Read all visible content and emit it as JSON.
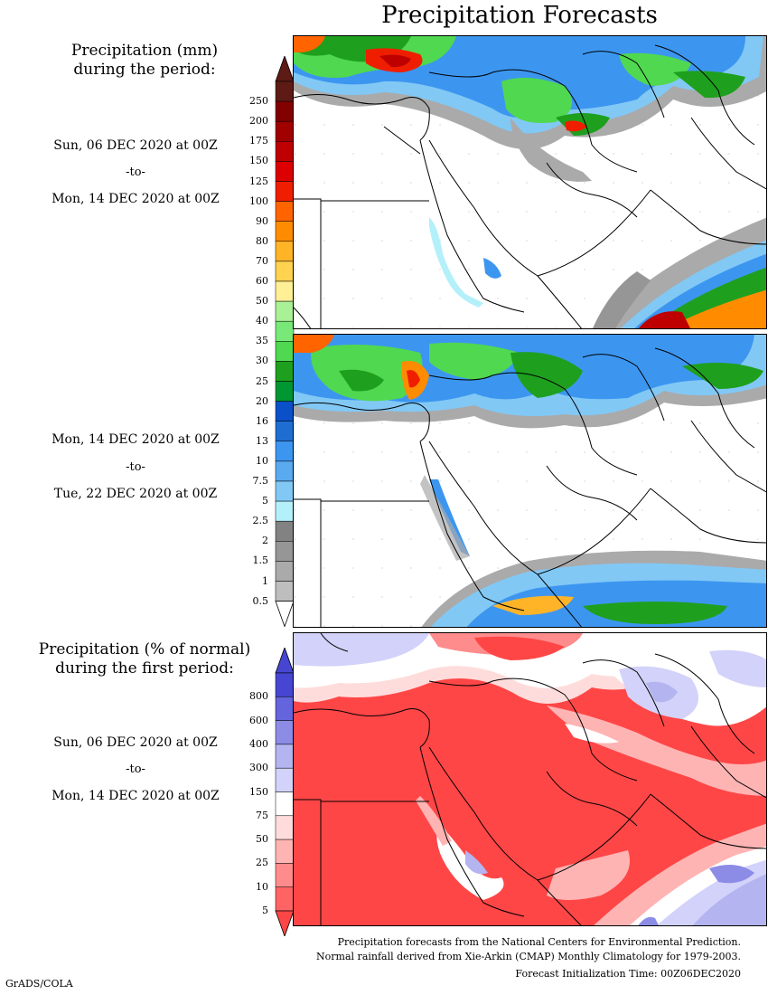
{
  "title": "Precipitation Forecasts",
  "panels": [
    {
      "header": [
        "Precipitation (mm)",
        "during the period:"
      ],
      "start": "Sun, 06 DEC 2020 at 00Z",
      "sep": "-to-",
      "end": "Mon, 14 DEC 2020 at 00Z"
    },
    {
      "start": "Mon, 14 DEC 2020 at 00Z",
      "sep": "-to-",
      "end": "Tue, 22 DEC 2020 at 00Z"
    },
    {
      "header": [
        "Precipitation (% of normal)",
        "during the first period:"
      ],
      "start": "Sun, 06 DEC 2020 at 00Z",
      "sep": "-to-",
      "end": "Mon, 14 DEC 2020 at 00Z"
    }
  ],
  "precip_scale": {
    "labels": [
      "250",
      "200",
      "175",
      "150",
      "125",
      "100",
      "90",
      "80",
      "70",
      "60",
      "50",
      "40",
      "35",
      "30",
      "25",
      "20",
      "16",
      "13",
      "10",
      "7.5",
      "5",
      "2.5",
      "2",
      "1.5",
      "1",
      "0.5"
    ],
    "colors": [
      "#5e1a14",
      "#820000",
      "#a00000",
      "#be0000",
      "#dc0000",
      "#f01e00",
      "#ff6400",
      "#ff8c00",
      "#ffb428",
      "#ffd250",
      "#fff096",
      "#aaf096",
      "#78e878",
      "#50d850",
      "#1ea01e",
      "#009632",
      "#0a50c8",
      "#1e6ed2",
      "#3c96f0",
      "#5aaaf0",
      "#82c8f5",
      "#b4f0fa",
      "#828282",
      "#969696",
      "#aaaaaa",
      "#bebebe"
    ],
    "bottom_color": "#ffffff"
  },
  "pct_scale": {
    "labels": [
      "800",
      "600",
      "400",
      "300",
      "150",
      "75",
      "50",
      "25",
      "10",
      "5"
    ],
    "colors": [
      "#4646d2",
      "#6464dc",
      "#8c8ce6",
      "#b4b4f0",
      "#d2d2fa",
      "#ffffff",
      "#ffdcdc",
      "#ffb4b4",
      "#ff8c8c",
      "#ff6464"
    ],
    "bottom_color": "#ff4646"
  },
  "footer": [
    "Precipitation forecasts from the National Centers for Environmental Prediction.",
    "Normal rainfall derived from Xie-Arkin (CMAP) Monthly Climatology for 1979-2003.",
    "Forecast Initialization Time: 00Z06DEC2020"
  ],
  "credit": "GrADS/COLA"
}
